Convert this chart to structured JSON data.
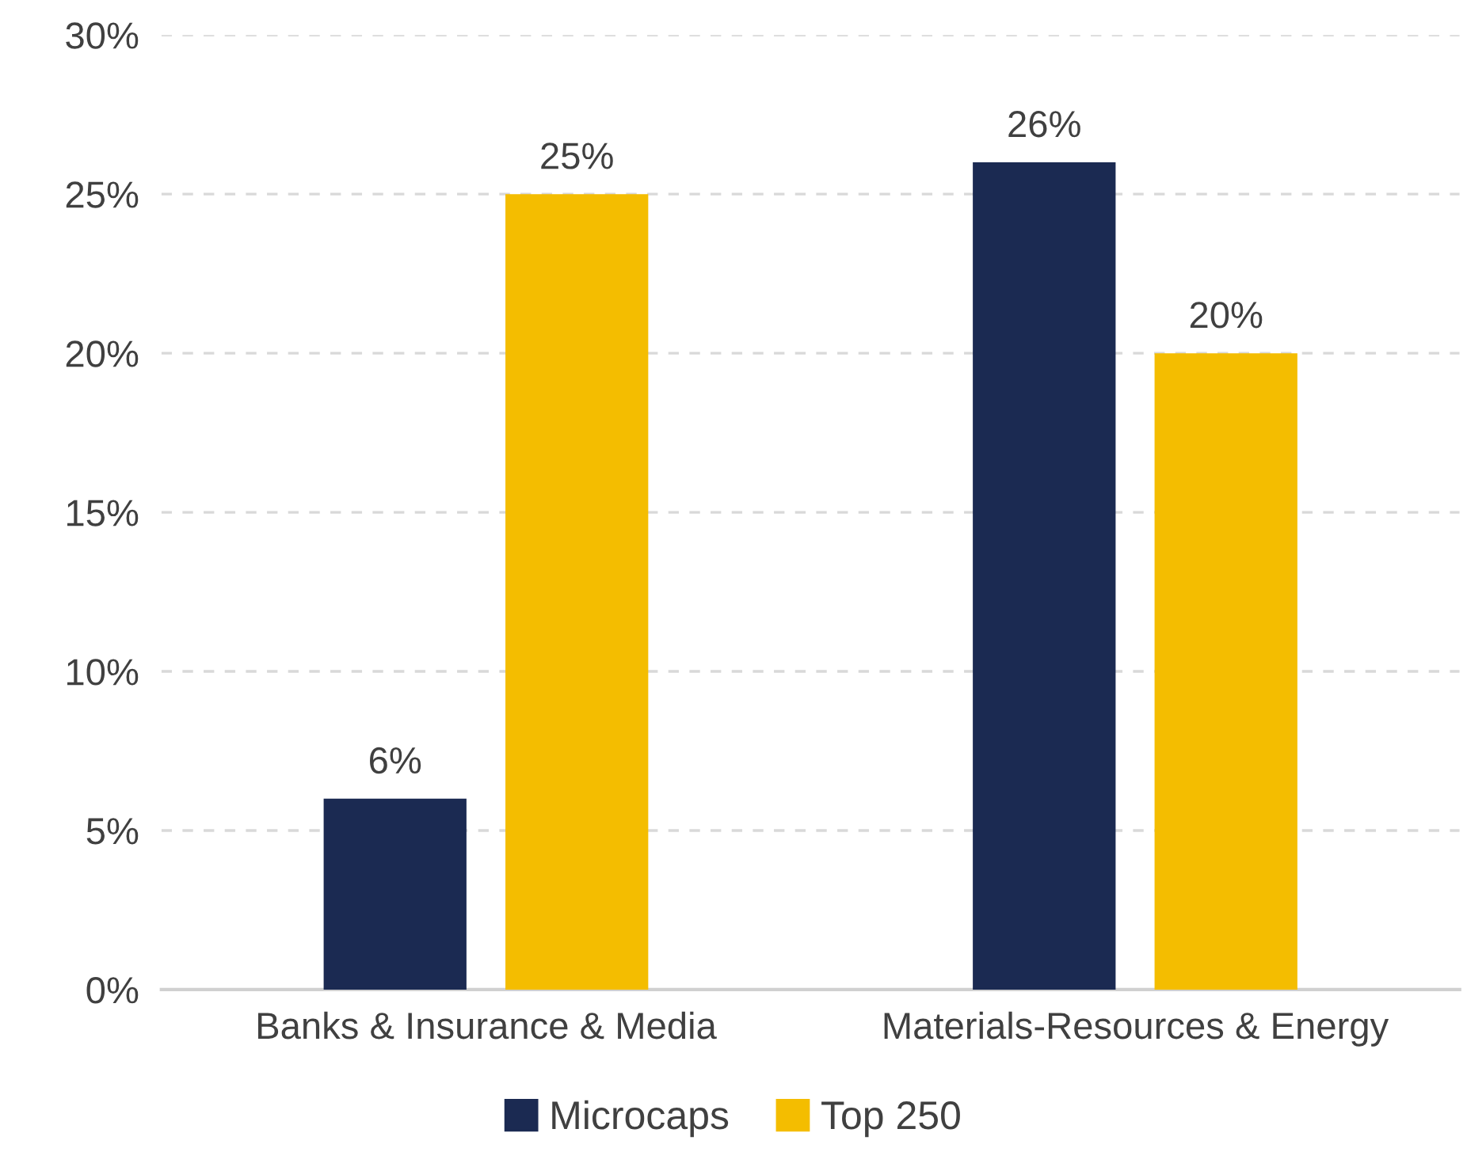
{
  "chart_data": {
    "type": "bar",
    "categories": [
      "Banks & Insurance & Media",
      "Materials-Resources & Energy"
    ],
    "series": [
      {
        "name": "Microcaps",
        "color": "#1b2a52",
        "values": [
          6,
          26
        ],
        "value_labels": [
          "6%",
          "26%"
        ]
      },
      {
        "name": "Top 250",
        "color": "#f4bd00",
        "values": [
          25,
          20
        ],
        "value_labels": [
          "25%",
          "20%"
        ]
      }
    ],
    "ylim": [
      0,
      30
    ],
    "yticks": [
      {
        "value": 0,
        "label": "0%"
      },
      {
        "value": 5,
        "label": "5%"
      },
      {
        "value": 10,
        "label": "10%"
      },
      {
        "value": 15,
        "label": "15%"
      },
      {
        "value": 20,
        "label": "20%"
      },
      {
        "value": 25,
        "label": "25%"
      },
      {
        "value": 30,
        "label": "30%"
      }
    ],
    "grid": "y",
    "legend": "bottom"
  }
}
